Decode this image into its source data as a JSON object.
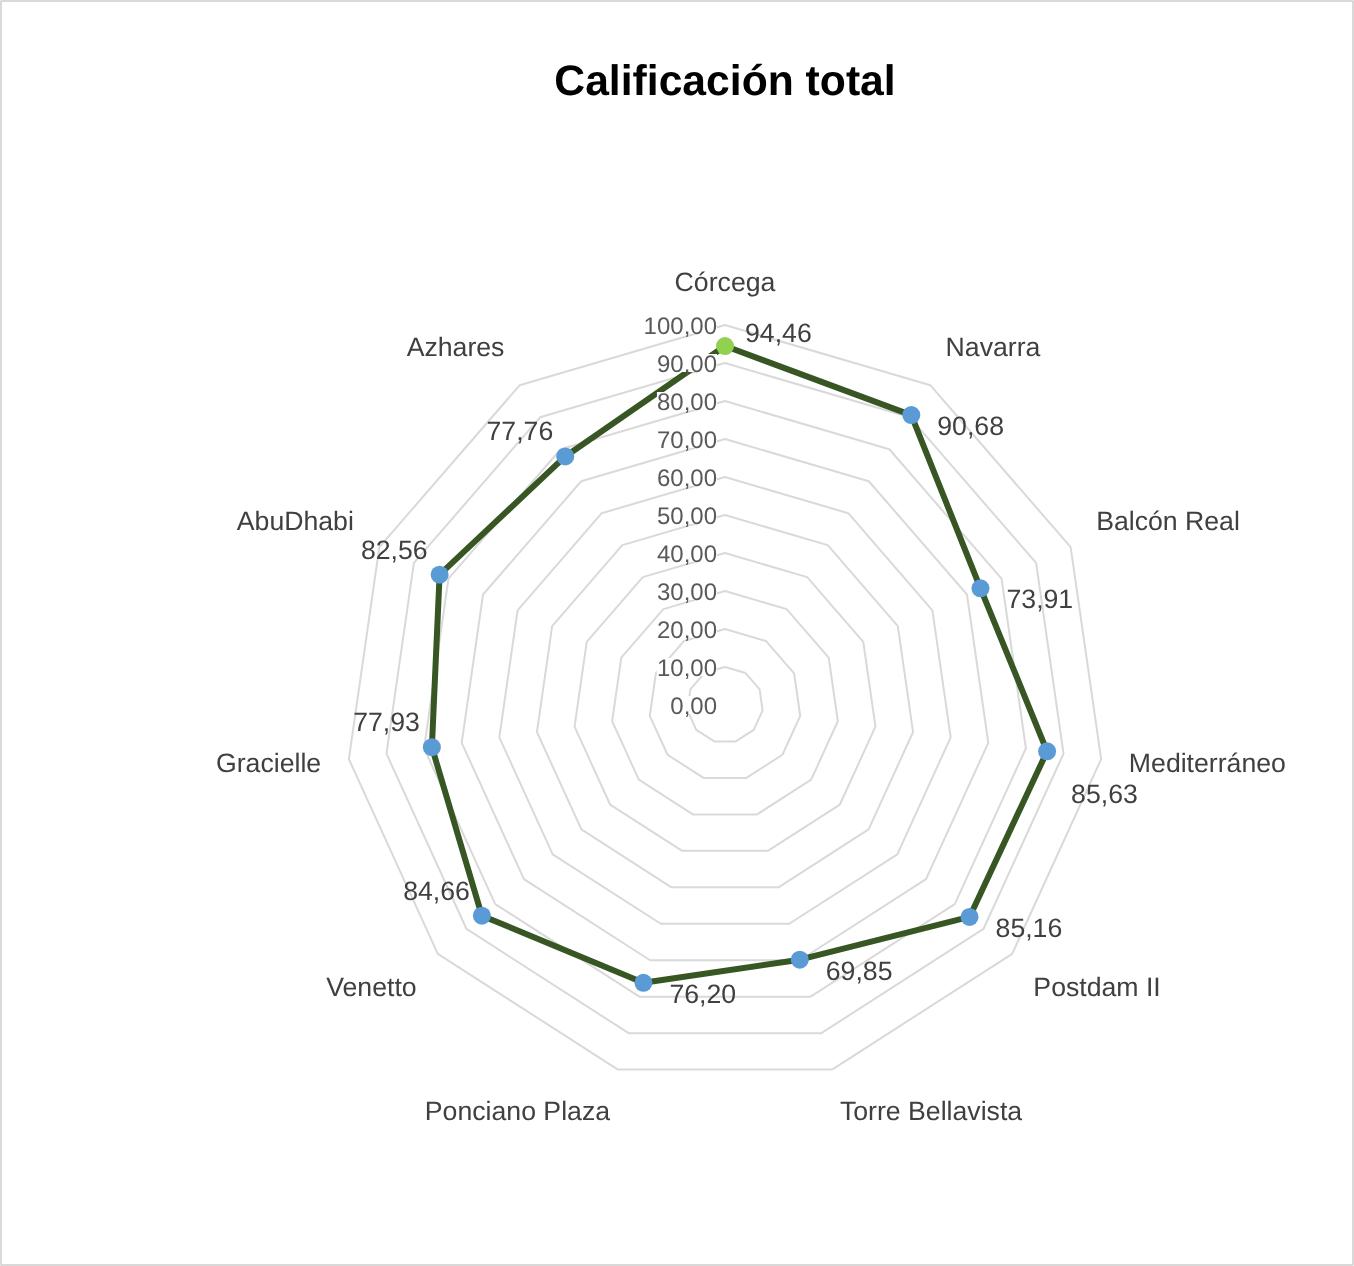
{
  "chart_data": {
    "type": "radar",
    "title": "Calificación total",
    "categories": [
      "Córcega",
      "Navarra",
      "Balcón Real",
      "Mediterráneo",
      "Postdam II",
      "Torre Bellavista",
      "Ponciano Plaza",
      "Venetto",
      "Gracielle",
      "AbuDhabi",
      "Azhares"
    ],
    "series": [
      {
        "color": "#375623",
        "colors": [
          "#92d050",
          "#5b9bd5",
          "#5b9bd5",
          "#5b9bd5",
          "#5b9bd5",
          "#5b9bd5",
          "#5b9bd5",
          "#5b9bd5",
          "#5b9bd5",
          "#5b9bd5",
          "#5b9bd5"
        ],
        "values": [
          94.46,
          90.68,
          73.91,
          85.63,
          85.16,
          69.85,
          76.2,
          84.66,
          77.93,
          82.56,
          77.76
        ],
        "value_labels": [
          "94,46",
          "90,68",
          "73,91",
          "85,63",
          "85,16",
          "69,85",
          "76,20",
          "84,66",
          "77,93",
          "82,56",
          "77,76"
        ]
      }
    ],
    "ylim": [
      0,
      100
    ],
    "yticks": [
      {
        "value": 0,
        "label": "0,00"
      },
      {
        "value": 10,
        "label": "10,00"
      },
      {
        "value": 20,
        "label": "20,00"
      },
      {
        "value": 30,
        "label": "30,00"
      },
      {
        "value": 40,
        "label": "40,00"
      },
      {
        "value": 50,
        "label": "50,00"
      },
      {
        "value": 60,
        "label": "60,00"
      },
      {
        "value": 70,
        "label": "70,00"
      },
      {
        "value": 80,
        "label": "80,00"
      },
      {
        "value": 90,
        "label": "90,00"
      },
      {
        "value": 100,
        "label": "100,00"
      }
    ],
    "grid": true,
    "marker": "circle",
    "line_style": "solid"
  }
}
